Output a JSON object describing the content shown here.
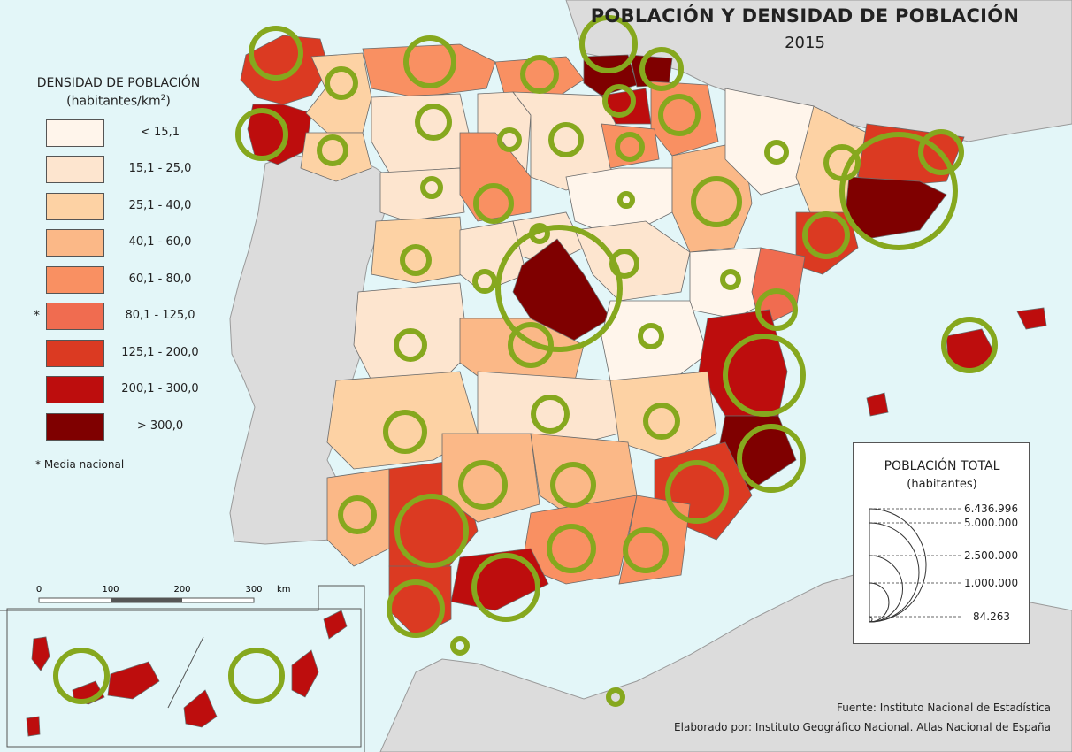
{
  "title": "POBLACIÓN Y DENSIDAD DE POBLACIÓN",
  "year": "2015",
  "legend_density": {
    "title": "DENSIDAD DE POBLACIÓN",
    "unit": "(habitantes/km",
    "unit_sup": "2",
    "unit_close": ")",
    "national_marker": "*",
    "national_note": "* Media nacional",
    "classes": [
      {
        "label": "< 15,1",
        "color": "#fff5eb"
      },
      {
        "label": "15,1 - 25,0",
        "color": "#fde5cf"
      },
      {
        "label": "25,1 - 40,0",
        "color": "#fdd2a4"
      },
      {
        "label": "40,1 - 60,0",
        "color": "#fbb887"
      },
      {
        "label": "60,1 - 80,0",
        "color": "#f99062"
      },
      {
        "label": "80,1 - 125,0",
        "color": "#f06c50",
        "national_average": true
      },
      {
        "label": "125,1 - 200,0",
        "color": "#db3a22"
      },
      {
        "label": "200,1 - 300,0",
        "color": "#bd0d0d"
      },
      {
        "label": "> 300,0",
        "color": "#7f0000"
      }
    ]
  },
  "legend_population": {
    "title": "POBLACIÓN TOTAL",
    "unit": "(habitantes)",
    "values": [
      "6.436.996",
      "5.000.000",
      "2.500.000",
      "1.000.000",
      "84.263"
    ]
  },
  "scale": {
    "ticks": [
      "0",
      "100",
      "200",
      "300"
    ],
    "unit": "km"
  },
  "source": "Fuente: Instituto Nacional de Estadística",
  "credit": "Elaborado por: Instituto Geográfico Nacional. Atlas Nacional de España",
  "colors": {
    "sea": "#e3f6f8",
    "neighbor_land": "#dcdcdc",
    "proportional_circle": "#86a81e"
  }
}
